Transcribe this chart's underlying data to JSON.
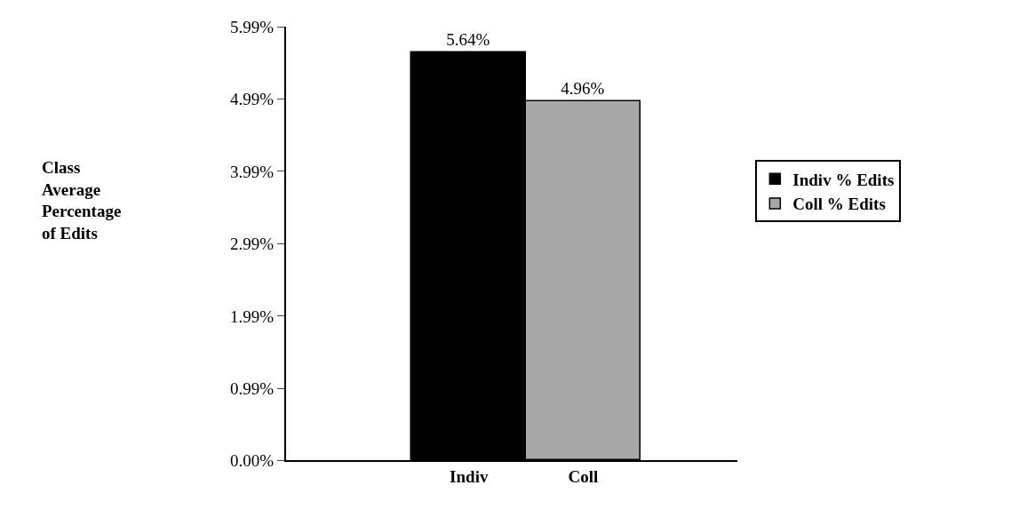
{
  "chart_data": {
    "type": "bar",
    "annotations": [
      "Class\nAverage\nPercentage\nof Edits"
    ],
    "categories": [
      "Indiv",
      "Coll"
    ],
    "series": [
      {
        "name": "Indiv % Edits",
        "color": "#000000",
        "values": [
          5.64,
          null
        ],
        "value_labels": [
          "5.64%",
          null
        ]
      },
      {
        "name": "Coll % Edits",
        "color": "#a8a8a8",
        "values": [
          null,
          4.96
        ],
        "value_labels": [
          null,
          "4.96%"
        ]
      }
    ],
    "ylim": [
      0,
      5.99
    ],
    "yticks": [
      {
        "value": 0,
        "label": "0.00%"
      },
      {
        "value": 0.99,
        "label": "0.99%"
      },
      {
        "value": 1.99,
        "label": "1.99%"
      },
      {
        "value": 2.99,
        "label": "2.99%"
      },
      {
        "value": 3.99,
        "label": "3.99%"
      },
      {
        "value": 4.99,
        "label": "4.99%"
      },
      {
        "value": 5.99,
        "label": "5.99%"
      }
    ],
    "grid": false,
    "legend": "right"
  }
}
